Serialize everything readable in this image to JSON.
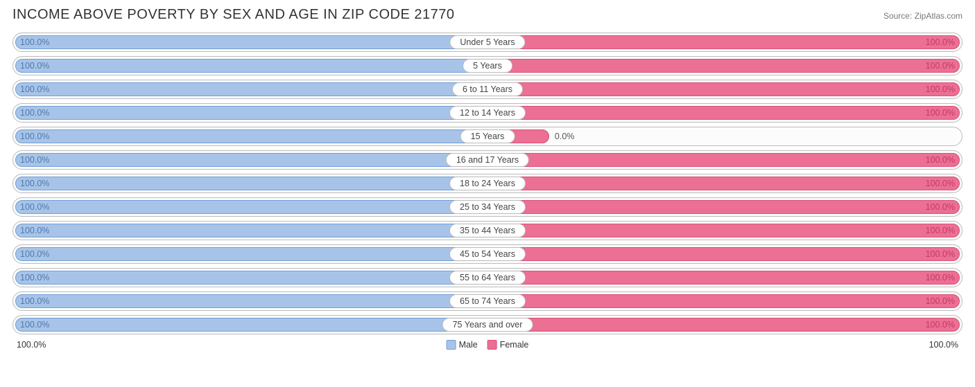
{
  "title": "INCOME ABOVE POVERTY BY SEX AND AGE IN ZIP CODE 21770",
  "source": "Source: ZipAtlas.com",
  "colors": {
    "male_fill": "#a7c4e8",
    "male_border": "#6f9fd8",
    "male_text": "#4f79ad",
    "female_fill": "#ec6f94",
    "female_border": "#d84f78",
    "female_text": "#c33a63",
    "row_border": "#bbbbbb",
    "bg": "#ffffff"
  },
  "axis": {
    "left": "100.0%",
    "right": "100.0%"
  },
  "legend": {
    "male": "Male",
    "female": "Female"
  },
  "rows": [
    {
      "age": "Under 5 Years",
      "male_pct": 100.0,
      "male_label": "100.0%",
      "female_pct": 100.0,
      "female_label": "100.0%"
    },
    {
      "age": "5 Years",
      "male_pct": 100.0,
      "male_label": "100.0%",
      "female_pct": 100.0,
      "female_label": "100.0%"
    },
    {
      "age": "6 to 11 Years",
      "male_pct": 100.0,
      "male_label": "100.0%",
      "female_pct": 100.0,
      "female_label": "100.0%"
    },
    {
      "age": "12 to 14 Years",
      "male_pct": 100.0,
      "male_label": "100.0%",
      "female_pct": 100.0,
      "female_label": "100.0%"
    },
    {
      "age": "15 Years",
      "male_pct": 100.0,
      "male_label": "100.0%",
      "female_pct": 0.0,
      "female_label": "0.0%",
      "female_stub": 13
    },
    {
      "age": "16 and 17 Years",
      "male_pct": 100.0,
      "male_label": "100.0%",
      "female_pct": 100.0,
      "female_label": "100.0%"
    },
    {
      "age": "18 to 24 Years",
      "male_pct": 100.0,
      "male_label": "100.0%",
      "female_pct": 100.0,
      "female_label": "100.0%"
    },
    {
      "age": "25 to 34 Years",
      "male_pct": 100.0,
      "male_label": "100.0%",
      "female_pct": 100.0,
      "female_label": "100.0%"
    },
    {
      "age": "35 to 44 Years",
      "male_pct": 100.0,
      "male_label": "100.0%",
      "female_pct": 100.0,
      "female_label": "100.0%"
    },
    {
      "age": "45 to 54 Years",
      "male_pct": 100.0,
      "male_label": "100.0%",
      "female_pct": 100.0,
      "female_label": "100.0%"
    },
    {
      "age": "55 to 64 Years",
      "male_pct": 100.0,
      "male_label": "100.0%",
      "female_pct": 100.0,
      "female_label": "100.0%"
    },
    {
      "age": "65 to 74 Years",
      "male_pct": 100.0,
      "male_label": "100.0%",
      "female_pct": 100.0,
      "female_label": "100.0%"
    },
    {
      "age": "75 Years and over",
      "male_pct": 100.0,
      "male_label": "100.0%",
      "female_pct": 100.0,
      "female_label": "100.0%"
    }
  ]
}
